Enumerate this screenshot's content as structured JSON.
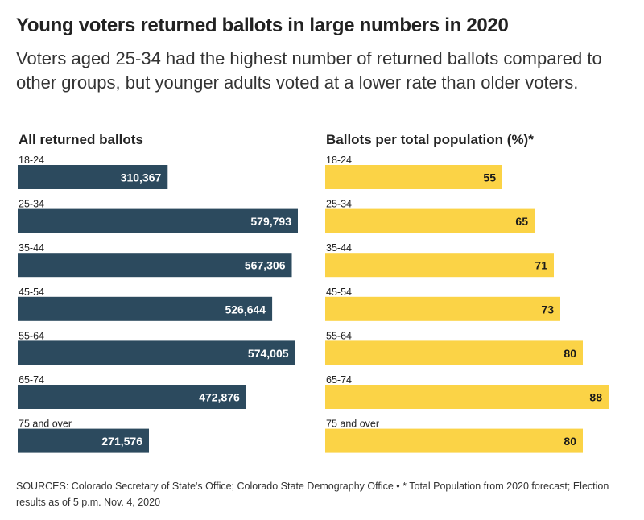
{
  "header": {
    "title": "Young voters returned ballots in large numbers in 2020",
    "subtitle": "Voters aged 25-34 had the highest number of returned ballots compared to other groups, but younger adults voted at a lower rate than older voters."
  },
  "footer": {
    "source": "SOURCES: Colorado Secretary of State's Office; Colorado State Demography Office • * Total Population from 2020 forecast; Election results as of 5 p.m. Nov. 4, 2020"
  },
  "chart_data": [
    {
      "type": "bar",
      "orientation": "horizontal",
      "title": "All returned ballots",
      "categories": [
        "18-24",
        "25-34",
        "35-44",
        "45-54",
        "55-64",
        "65-74",
        "75 and over"
      ],
      "values": [
        310367,
        579793,
        567306,
        526644,
        574005,
        472876,
        271576
      ],
      "value_labels": [
        "310,367",
        "579,793",
        "567,306",
        "526,644",
        "574,005",
        "472,876",
        "271,576"
      ],
      "xlim": [
        0,
        579793
      ],
      "grid": false,
      "color": "#2c4a5e",
      "label_color": "#ffffff"
    },
    {
      "type": "bar",
      "orientation": "horizontal",
      "title": "Ballots per total population (%)*",
      "categories": [
        "18-24",
        "25-34",
        "35-44",
        "45-54",
        "55-64",
        "65-74",
        "75 and over"
      ],
      "values": [
        55,
        65,
        71,
        73,
        80,
        88,
        80
      ],
      "value_labels": [
        "55",
        "65",
        "71",
        "73",
        "80",
        "88",
        "80"
      ],
      "xlim": [
        0,
        88
      ],
      "grid": false,
      "color": "#fbd346",
      "label_color": "#1a1a1a"
    }
  ]
}
